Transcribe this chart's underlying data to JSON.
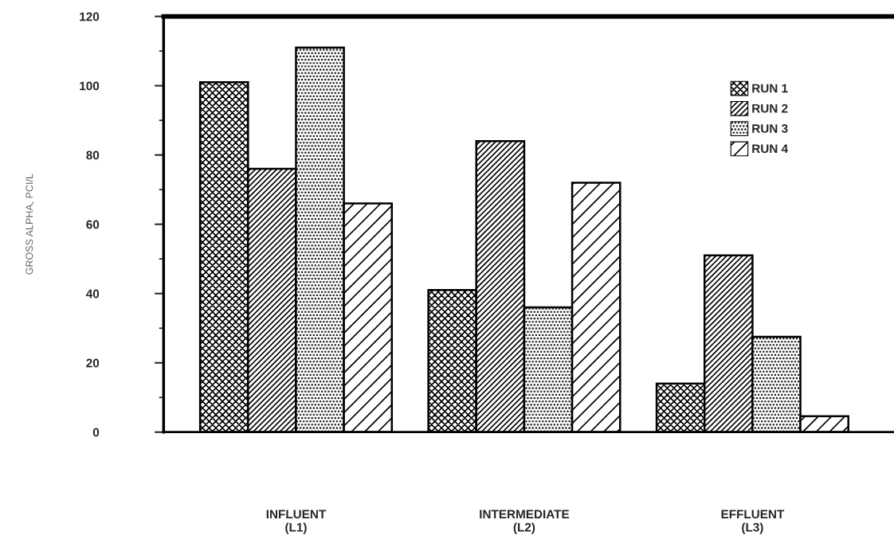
{
  "chart_data": {
    "type": "bar",
    "ylabel": "GROSS ALPHA, PCI/L",
    "categories": [
      "INFLUENT\n(L1)",
      "INTERMEDIATE\n(L2)",
      "EFFLUENT\n(L3)"
    ],
    "series": [
      {
        "name": "RUN 1",
        "color": "#000000",
        "values": [
          101,
          41,
          14
        ]
      },
      {
        "name": "RUN 2",
        "color": "#000000",
        "values": [
          76,
          84,
          51
        ]
      },
      {
        "name": "RUN 3",
        "color": "#000000",
        "values": [
          111,
          36,
          27.5
        ]
      },
      {
        "name": "RUN 4",
        "color": "#000000",
        "values": [
          66,
          72,
          4.6
        ]
      }
    ],
    "ylim": [
      0,
      120
    ],
    "yticks": [
      0,
      20,
      40,
      60,
      80,
      100,
      120
    ],
    "grid": false,
    "legend": "top right"
  }
}
